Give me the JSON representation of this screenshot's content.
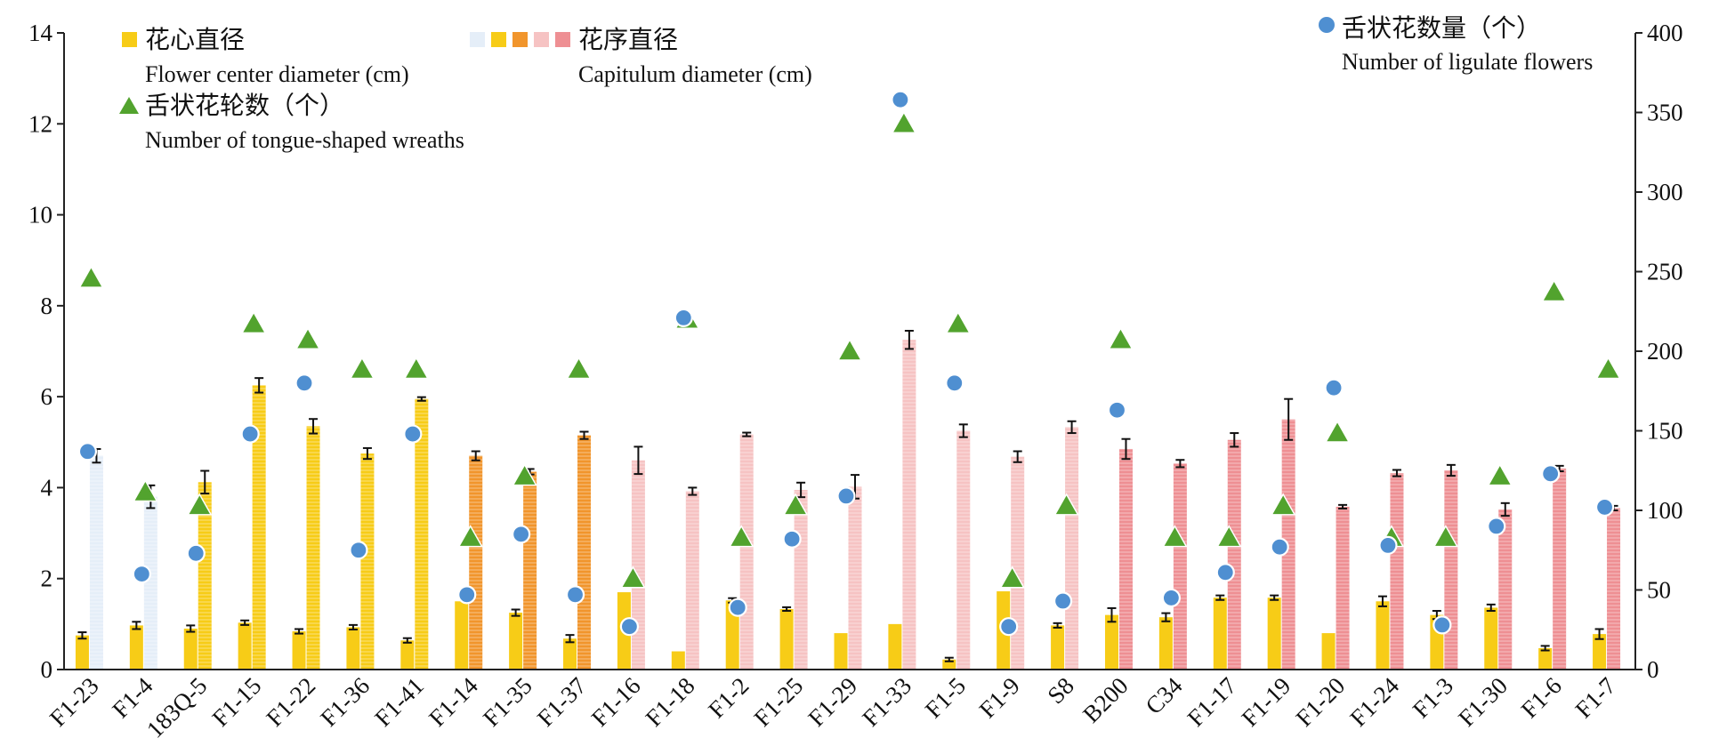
{
  "chart_data": {
    "type": "bar",
    "categories": [
      "F1-23",
      "F1-4",
      "183Q-5",
      "F1-15",
      "F1-22",
      "F1-36",
      "F1-41",
      "F1-14",
      "F1-35",
      "F1-37",
      "F1-16",
      "F1-18",
      "F1-2",
      "F1-25",
      "F1-29",
      "F1-33",
      "F1-5",
      "F1-9",
      "S8",
      "B200",
      "C34",
      "F1-17",
      "F1-19",
      "F1-20",
      "F1-24",
      "F1-3",
      "F1-30",
      "F1-6",
      "F1-7"
    ],
    "left_axis": {
      "ylim": [
        0,
        14
      ],
      "ticks": [
        "0",
        "2",
        "4",
        "6",
        "8",
        "10",
        "12",
        "14"
      ]
    },
    "right_axis": {
      "ylim": [
        0,
        400
      ],
      "ticks": [
        "0",
        "50",
        "100",
        "150",
        "200",
        "250",
        "300",
        "350",
        "400"
      ]
    },
    "series": [
      {
        "name": "花心直径 Flower center diameter (cm)",
        "kind": "bar",
        "axis": "left",
        "values": [
          0.75,
          0.97,
          0.9,
          1.03,
          0.84,
          0.93,
          0.64,
          1.5,
          1.25,
          0.68,
          1.7,
          0.4,
          1.52,
          1.33,
          0.8,
          1.0,
          0.22,
          1.72,
          0.97,
          1.2,
          1.15,
          1.58,
          1.58,
          0.8,
          1.5,
          1.2,
          1.36,
          0.47,
          0.78
        ],
        "errors": [
          0.07,
          0.08,
          0.07,
          0.05,
          0.05,
          0.05,
          0.05,
          0,
          0.07,
          0.08,
          0,
          0,
          0.05,
          0.04,
          0,
          0,
          0.04,
          0,
          0.05,
          0.15,
          0.09,
          0.05,
          0.05,
          0,
          0.11,
          0.09,
          0.07,
          0.05,
          0.11
        ]
      },
      {
        "name": "花序直径 Capitulum diameter (cm)",
        "kind": "bar",
        "axis": "left",
        "values": [
          4.7,
          3.8,
          4.12,
          6.25,
          5.35,
          4.75,
          5.95,
          4.7,
          4.35,
          5.15,
          4.6,
          3.92,
          5.17,
          3.95,
          4.02,
          7.25,
          5.25,
          4.68,
          5.33,
          4.85,
          4.53,
          5.05,
          5.5,
          3.58,
          4.32,
          4.38,
          3.52,
          4.42,
          3.55
        ],
        "errors": [
          0.15,
          0.25,
          0.25,
          0.16,
          0.16,
          0.12,
          0.04,
          0.1,
          0.06,
          0.08,
          0.3,
          0.08,
          0.04,
          0.16,
          0.26,
          0.2,
          0.14,
          0.12,
          0.13,
          0.22,
          0.08,
          0.15,
          0.45,
          0.04,
          0.07,
          0.12,
          0.14,
          0.06,
          0.05
        ],
        "colors": [
          "#e5eef8",
          "#e5eef8",
          "#f7cc17",
          "#f7cc17",
          "#f7cc17",
          "#f7cc17",
          "#f7cc17",
          "#f1952c",
          "#f1952c",
          "#f1952c",
          "#f6c3c3",
          "#f6c3c3",
          "#f6c3c3",
          "#f6c3c3",
          "#f6c3c3",
          "#f6c3c3",
          "#f6c3c3",
          "#f6c3c3",
          "#f6c3c3",
          "#ee8f93",
          "#ee8f93",
          "#ee8f93",
          "#ee8f93",
          "#ee8f93",
          "#ee8f93",
          "#ee8f93",
          "#ee8f93",
          "#ee8f93",
          "#ee8f93"
        ]
      },
      {
        "name": "舌状花轮数（个） Number of tongue-shaped wreaths",
        "kind": "triangle",
        "axis": "left",
        "values": [
          8.6,
          3.9,
          3.6,
          7.6,
          7.25,
          6.6,
          6.6,
          2.9,
          4.25,
          6.6,
          2.0,
          7.7,
          2.9,
          3.6,
          7.0,
          12.0,
          7.6,
          2.0,
          3.6,
          7.25,
          2.9,
          2.9,
          3.6,
          5.2,
          2.9,
          2.9,
          4.25,
          8.3,
          6.6
        ]
      },
      {
        "name": "舌状花数量（个） Number of ligulate flowers",
        "kind": "circle",
        "axis": "right",
        "values": [
          137,
          60,
          73,
          148,
          180,
          75,
          148,
          47,
          85,
          47,
          27,
          221,
          39,
          82,
          109,
          358,
          180,
          27,
          43,
          163,
          45,
          61,
          77,
          177,
          78,
          28,
          90,
          123,
          102
        ]
      }
    ],
    "legend": [
      {
        "zh": "花心直径",
        "en": "Flower center diameter (cm)",
        "marker": "square",
        "color": "#f7cc17"
      },
      {
        "zh": "花序直径",
        "en": "Capitulum diameter (cm)",
        "marker": "squares",
        "colors": [
          "#e5eef8",
          "#f7cc17",
          "#f1952c",
          "#f6c3c3",
          "#ee8f93"
        ]
      },
      {
        "zh": "舌状花轮数（个）",
        "en": "Number of tongue-shaped wreaths",
        "marker": "triangle",
        "color": "#52a32e"
      },
      {
        "zh": "舌状花数量（个）",
        "en": "Number of ligulate flowers",
        "marker": "circle",
        "color": "#4f8fd1"
      }
    ],
    "legend_position": "top",
    "grid": false
  },
  "colors": {
    "flower_center": "#f7cc17",
    "triangle": "#52a32e",
    "circle": "#4f8fd1",
    "axis": "#222222"
  }
}
